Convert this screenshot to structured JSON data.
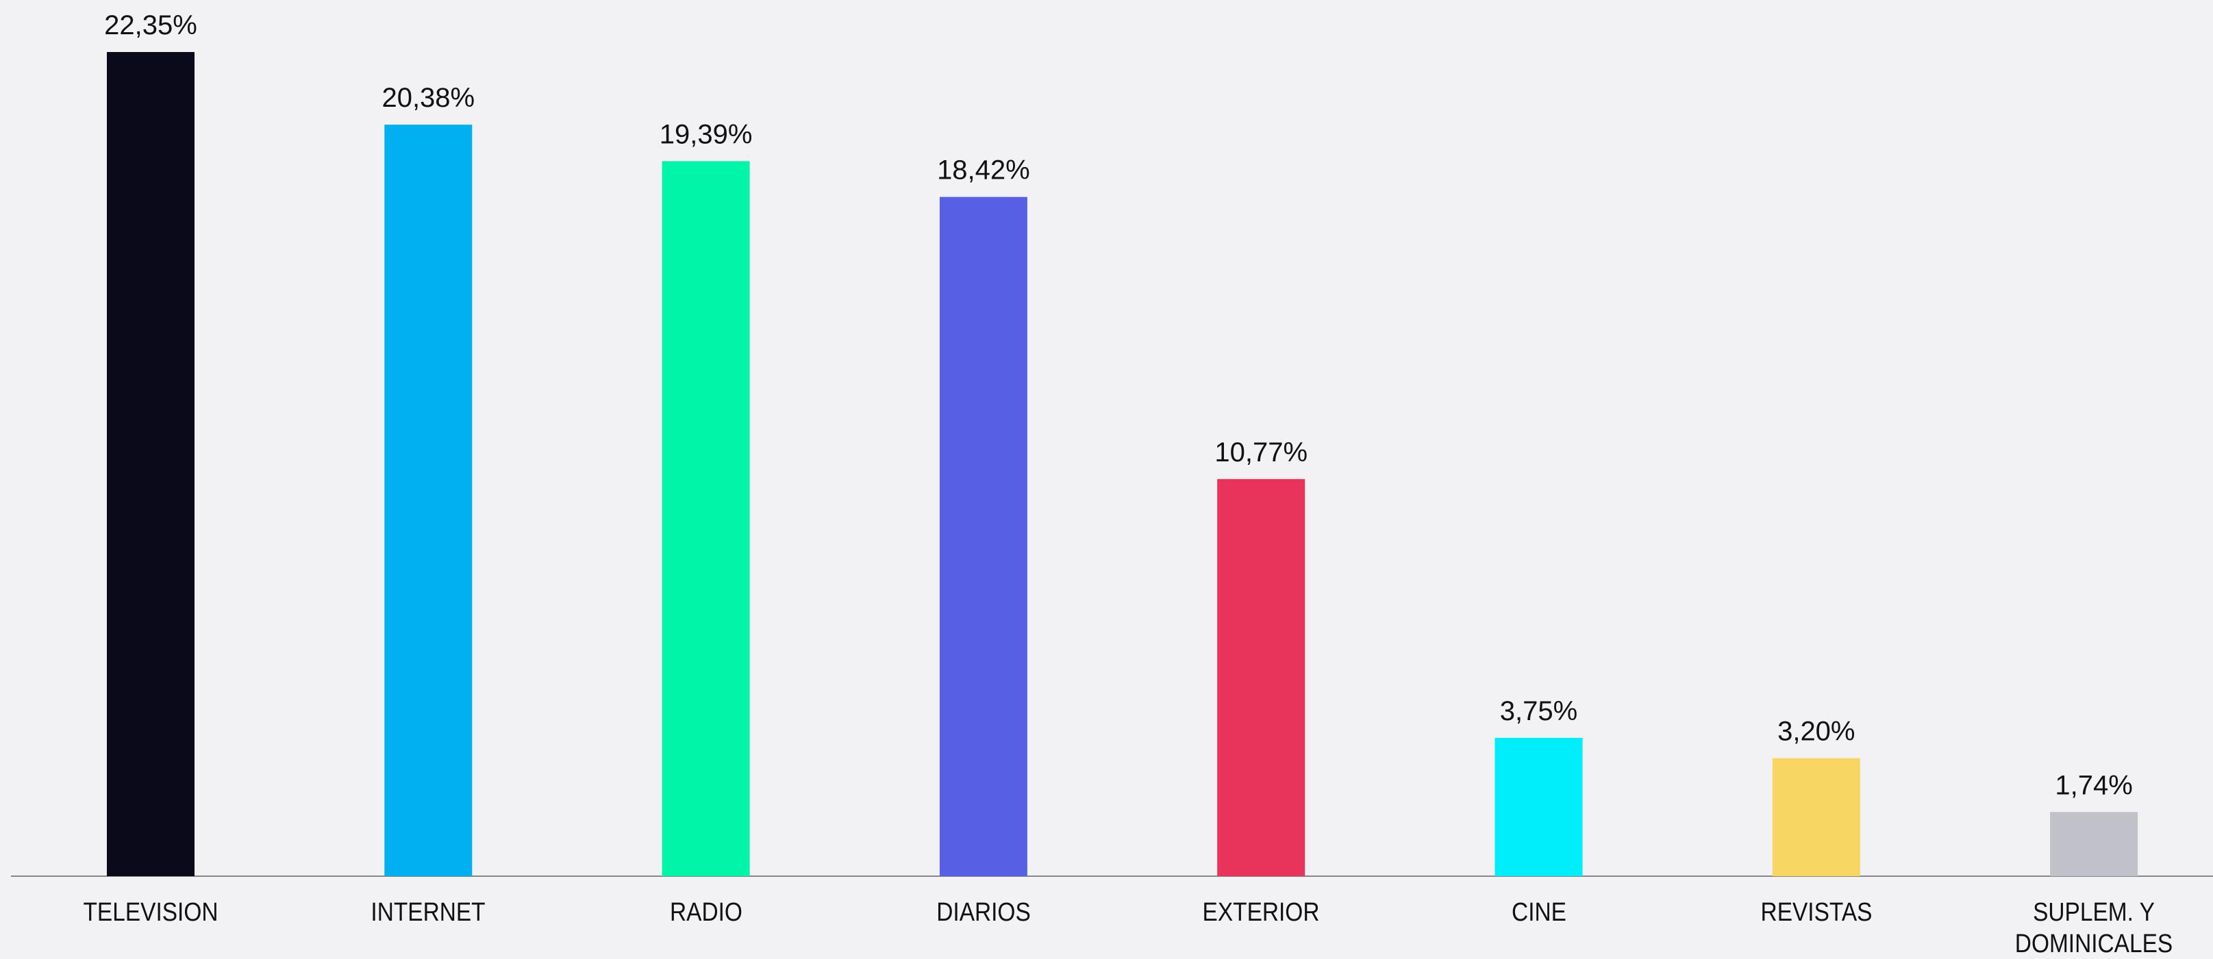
{
  "chart_data": {
    "type": "bar",
    "categories": [
      "TELEVISION",
      "INTERNET",
      "RADIO",
      "DIARIOS",
      "EXTERIOR",
      "CINE",
      "REVISTAS",
      "SUPLEM. Y DOMINICALES"
    ],
    "values": [
      22.35,
      20.38,
      19.39,
      18.42,
      10.77,
      3.75,
      3.2,
      1.74
    ],
    "value_labels": [
      "22,35%",
      "20,38%",
      "19,39%",
      "18,42%",
      "10,77%",
      "3,75%",
      "3,20%",
      "1,74%"
    ],
    "colors": [
      "#0a0a1a",
      "#00b0f0",
      "#00f5a8",
      "#5760e3",
      "#e8335a",
      "#00eefc",
      "#f8d664",
      "#c0c1c9"
    ],
    "grid": false
  }
}
